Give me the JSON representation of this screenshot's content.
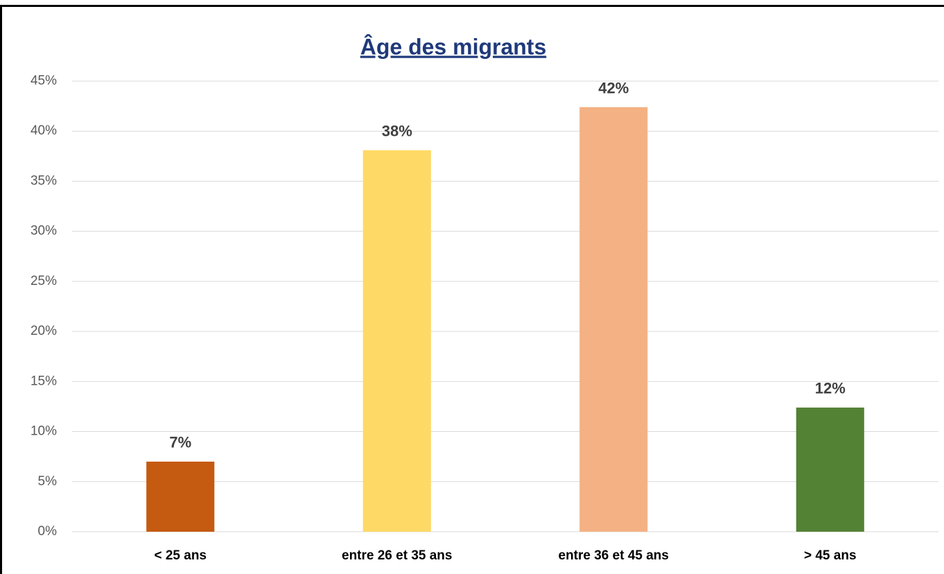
{
  "chart_data": {
    "type": "bar",
    "title": "Âge des migrants",
    "categories": [
      "< 25 ans",
      "entre 26 et 35 ans",
      "entre 36 et 45 ans",
      "> 45 ans"
    ],
    "values": [
      7.0,
      38.1,
      42.4,
      12.4
    ],
    "value_labels": [
      "7%",
      "38%",
      "42%",
      "12%"
    ],
    "colors": [
      "#c55a11",
      "#ffd966",
      "#f4b183",
      "#548235"
    ],
    "ylim": [
      0,
      45
    ],
    "yticks": [
      {
        "value": 0,
        "label": "0%"
      },
      {
        "value": 5,
        "label": "5%"
      },
      {
        "value": 10,
        "label": "10%"
      },
      {
        "value": 15,
        "label": "15%"
      },
      {
        "value": 20,
        "label": "20%"
      },
      {
        "value": 25,
        "label": "25%"
      },
      {
        "value": 30,
        "label": "30%"
      },
      {
        "value": 35,
        "label": "35%"
      },
      {
        "value": 40,
        "label": "40%"
      },
      {
        "value": 45,
        "label": "45%"
      }
    ],
    "grid": true
  }
}
